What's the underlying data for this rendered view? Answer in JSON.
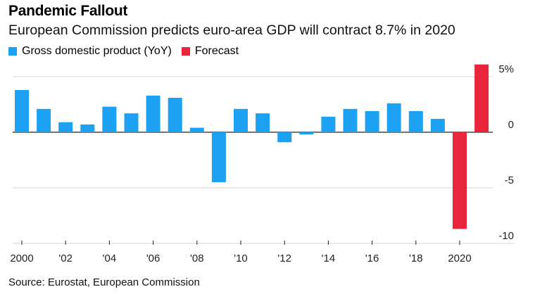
{
  "title": "Pandemic Fallout",
  "subtitle": "European Commission predicts euro-area GDP will contract 8.7% in 2020",
  "legend": [
    {
      "label": "Gross domestic product (YoY)",
      "color": "#1da1f2"
    },
    {
      "label": "Forecast",
      "color": "#e8253b"
    }
  ],
  "source": "Source: Eurostat, European Commission",
  "chart_data": {
    "type": "bar",
    "categories": [
      2000,
      2001,
      2002,
      2003,
      2004,
      2005,
      2006,
      2007,
      2008,
      2009,
      2010,
      2011,
      2012,
      2013,
      2014,
      2015,
      2016,
      2017,
      2018,
      2019,
      2020,
      2021
    ],
    "series": [
      {
        "name": "Gross domestic product (YoY)",
        "color": "#1da1f2",
        "values": [
          3.8,
          2.1,
          0.9,
          0.7,
          2.3,
          1.7,
          3.3,
          3.1,
          0.4,
          -4.5,
          2.1,
          1.7,
          -0.9,
          -0.2,
          1.4,
          2.1,
          1.9,
          2.6,
          1.9,
          1.2,
          null,
          null
        ]
      },
      {
        "name": "Forecast",
        "color": "#e8253b",
        "values": [
          null,
          null,
          null,
          null,
          null,
          null,
          null,
          null,
          null,
          null,
          null,
          null,
          null,
          null,
          null,
          null,
          null,
          null,
          null,
          null,
          -8.7,
          6.1
        ]
      }
    ],
    "ylim": [
      -10,
      5
    ],
    "yticks": [
      {
        "value": 5,
        "label": "5%"
      },
      {
        "value": 0,
        "label": "0"
      },
      {
        "value": -5,
        "label": "-5"
      },
      {
        "value": -10,
        "label": "-10"
      }
    ],
    "xticks": [
      {
        "year": 2000,
        "label": "2000"
      },
      {
        "year": 2002,
        "label": "'02"
      },
      {
        "year": 2004,
        "label": "'04"
      },
      {
        "year": 2006,
        "label": "'06"
      },
      {
        "year": 2008,
        "label": "'08"
      },
      {
        "year": 2010,
        "label": "'10"
      },
      {
        "year": 2012,
        "label": "'12"
      },
      {
        "year": 2014,
        "label": "'14"
      },
      {
        "year": 2016,
        "label": "'16"
      },
      {
        "year": 2018,
        "label": "'18"
      },
      {
        "year": 2020,
        "label": "2020"
      }
    ],
    "xlabel": "",
    "ylabel": "",
    "grid": true
  }
}
